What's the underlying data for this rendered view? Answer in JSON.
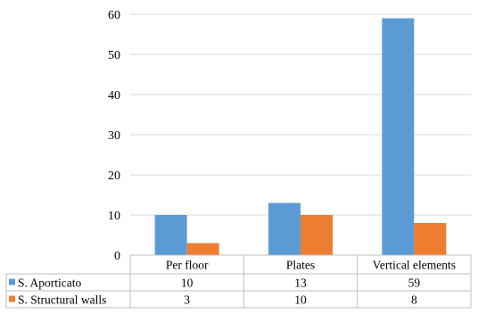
{
  "chart_data": {
    "type": "bar",
    "title": "",
    "xlabel": "",
    "ylabel": "",
    "ylim": [
      0,
      60
    ],
    "yticks": [
      "0",
      "10",
      "20",
      "30",
      "40",
      "50",
      "60"
    ],
    "grid": true,
    "legend": "data-table-left",
    "categories": [
      "Per floor",
      "Plates",
      "Vertical elements"
    ],
    "series": [
      {
        "name": "S. Aporticato",
        "color": "#5B9BD5",
        "values": [
          10,
          13,
          59
        ]
      },
      {
        "name": "S. Structural walls",
        "color": "#ED7D31",
        "values": [
          3,
          10,
          8
        ]
      }
    ]
  }
}
